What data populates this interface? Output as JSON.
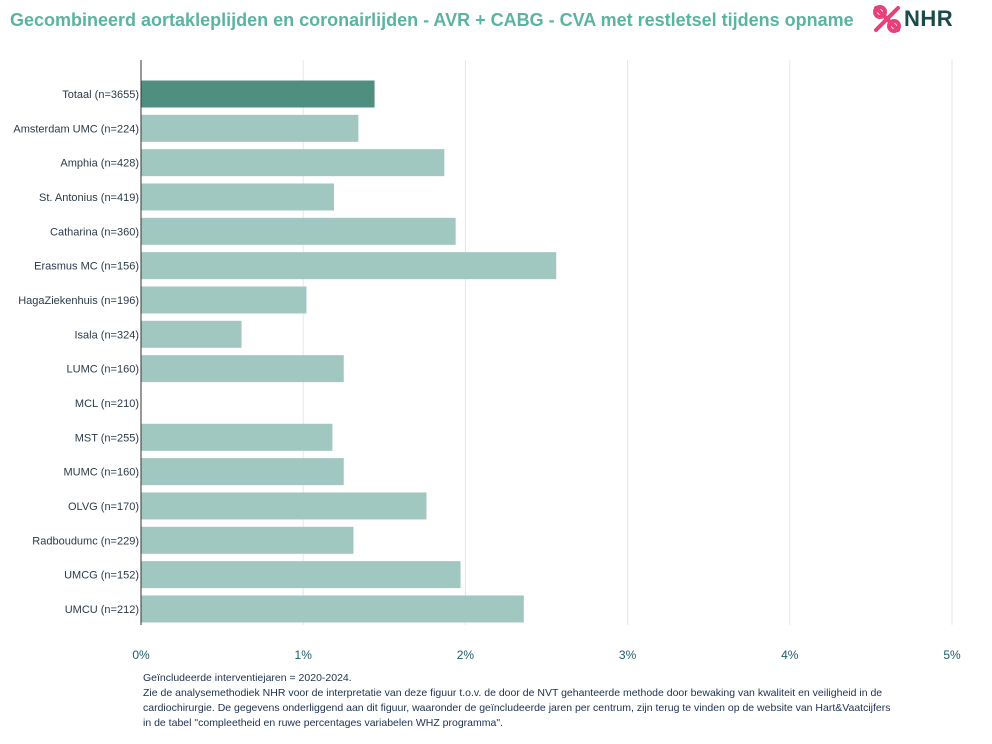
{
  "header": {
    "title": "Gecombineerd aortakleplijden en coronairlijden - AVR + CABG - CVA met restletsel tijdens opname",
    "logo_text": "NHR"
  },
  "chart_data": {
    "type": "bar",
    "orientation": "horizontal",
    "title": "Gecombineerd aortakleplijden en coronairlijden - AVR + CABG - CVA met restletsel tijdens opname",
    "xlabel": "",
    "ylabel": "",
    "xlim": [
      0,
      5
    ],
    "x_ticks": [
      "0%",
      "1%",
      "2%",
      "3%",
      "4%",
      "5%"
    ],
    "grid": "vertical",
    "colors": {
      "highlight": "#4f8f80",
      "default": "#a0c8c0"
    },
    "categories": [
      "Totaal (n=3655)",
      "Amsterdam UMC (n=224)",
      "Amphia (n=428)",
      "St. Antonius (n=419)",
      "Catharina (n=360)",
      "Erasmus MC (n=156)",
      "HagaZiekenhuis (n=196)",
      "Isala (n=324)",
      "LUMC (n=160)",
      "MCL (n=210)",
      "MST (n=255)",
      "MUMC (n=160)",
      "OLVG (n=170)",
      "Radboudumc (n=229)",
      "UMCG (n=152)",
      "UMCU (n=212)"
    ],
    "values": [
      1.44,
      1.34,
      1.87,
      1.19,
      1.94,
      2.56,
      1.02,
      0.62,
      1.25,
      0,
      1.18,
      1.25,
      1.76,
      1.31,
      1.97,
      2.36
    ],
    "highlight_index": 0
  },
  "footnote": {
    "lines": [
      "Geïncludeerde interventiejaren = 2020-2024.",
      "Zie de analysemethodiek NHR voor de interpretatie van deze figuur t.o.v. de door de NVT gehanteerde methode door bewaking van kwaliteit en veiligheid in de",
      "cardiochirurgie. De gegevens onderliggend aan dit figuur, waaronder de geïncludeerde jaren per centrum, zijn terug te vinden op de website van Hart&Vaatcijfers",
      "in de tabel \"compleetheid en ruwe percentages variabelen WHZ programma\"."
    ]
  }
}
